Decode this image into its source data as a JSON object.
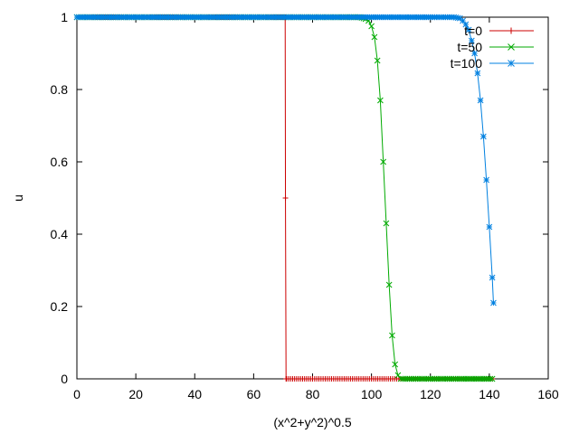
{
  "chart_data": {
    "type": "line",
    "title": "",
    "xlabel": "(x^2+y^2)^0.5",
    "ylabel": "u",
    "xlim": [
      0,
      160
    ],
    "ylim": [
      0,
      1
    ],
    "xticks": [
      0,
      20,
      40,
      60,
      80,
      100,
      120,
      140,
      160
    ],
    "yticks": [
      0,
      0.2,
      0.4,
      0.6,
      0.8,
      1
    ],
    "xtick_labels": [
      "0",
      "20",
      "40",
      "60",
      "80",
      "100",
      "120",
      "140",
      "160"
    ],
    "ytick_labels": [
      "0",
      "0.2",
      "0.4",
      "0.6",
      "0.8",
      "1"
    ],
    "grid": false,
    "legend_position": "top-right",
    "series": [
      {
        "name": "t=0",
        "color": "#cc0000",
        "marker": "plus",
        "x": [
          0,
          10,
          20,
          30,
          40,
          50,
          60,
          70,
          70.7,
          70.8,
          71,
          71.2,
          80,
          90,
          100,
          110,
          120,
          130,
          141
        ],
        "y": [
          1,
          1,
          1,
          1,
          1,
          1,
          1,
          1,
          1,
          0.5,
          0.0,
          0,
          0,
          0,
          0,
          0,
          0,
          0,
          0
        ]
      },
      {
        "name": "t=50",
        "color": "#00aa00",
        "marker": "x",
        "x": [
          0,
          20,
          40,
          60,
          80,
          96,
          98,
          99,
          100,
          101,
          102,
          103,
          104,
          105,
          106,
          107,
          108,
          109,
          110,
          115,
          120,
          130,
          141
        ],
        "y": [
          1,
          1,
          1,
          1,
          1,
          1,
          0.995,
          0.99,
          0.975,
          0.945,
          0.88,
          0.77,
          0.6,
          0.43,
          0.26,
          0.12,
          0.04,
          0.01,
          0,
          0,
          0,
          0,
          0
        ]
      },
      {
        "name": "t=100",
        "color": "#0080e0",
        "marker": "star",
        "x": [
          0,
          20,
          40,
          60,
          80,
          100,
          120,
          128,
          130,
          131,
          132,
          133,
          134,
          135,
          136,
          137,
          138,
          139,
          140,
          141,
          141.4
        ],
        "y": [
          1,
          1,
          1,
          1,
          1,
          1,
          1,
          1,
          0.997,
          0.99,
          0.98,
          0.965,
          0.935,
          0.9,
          0.845,
          0.77,
          0.67,
          0.55,
          0.42,
          0.28,
          0.21
        ]
      }
    ]
  }
}
